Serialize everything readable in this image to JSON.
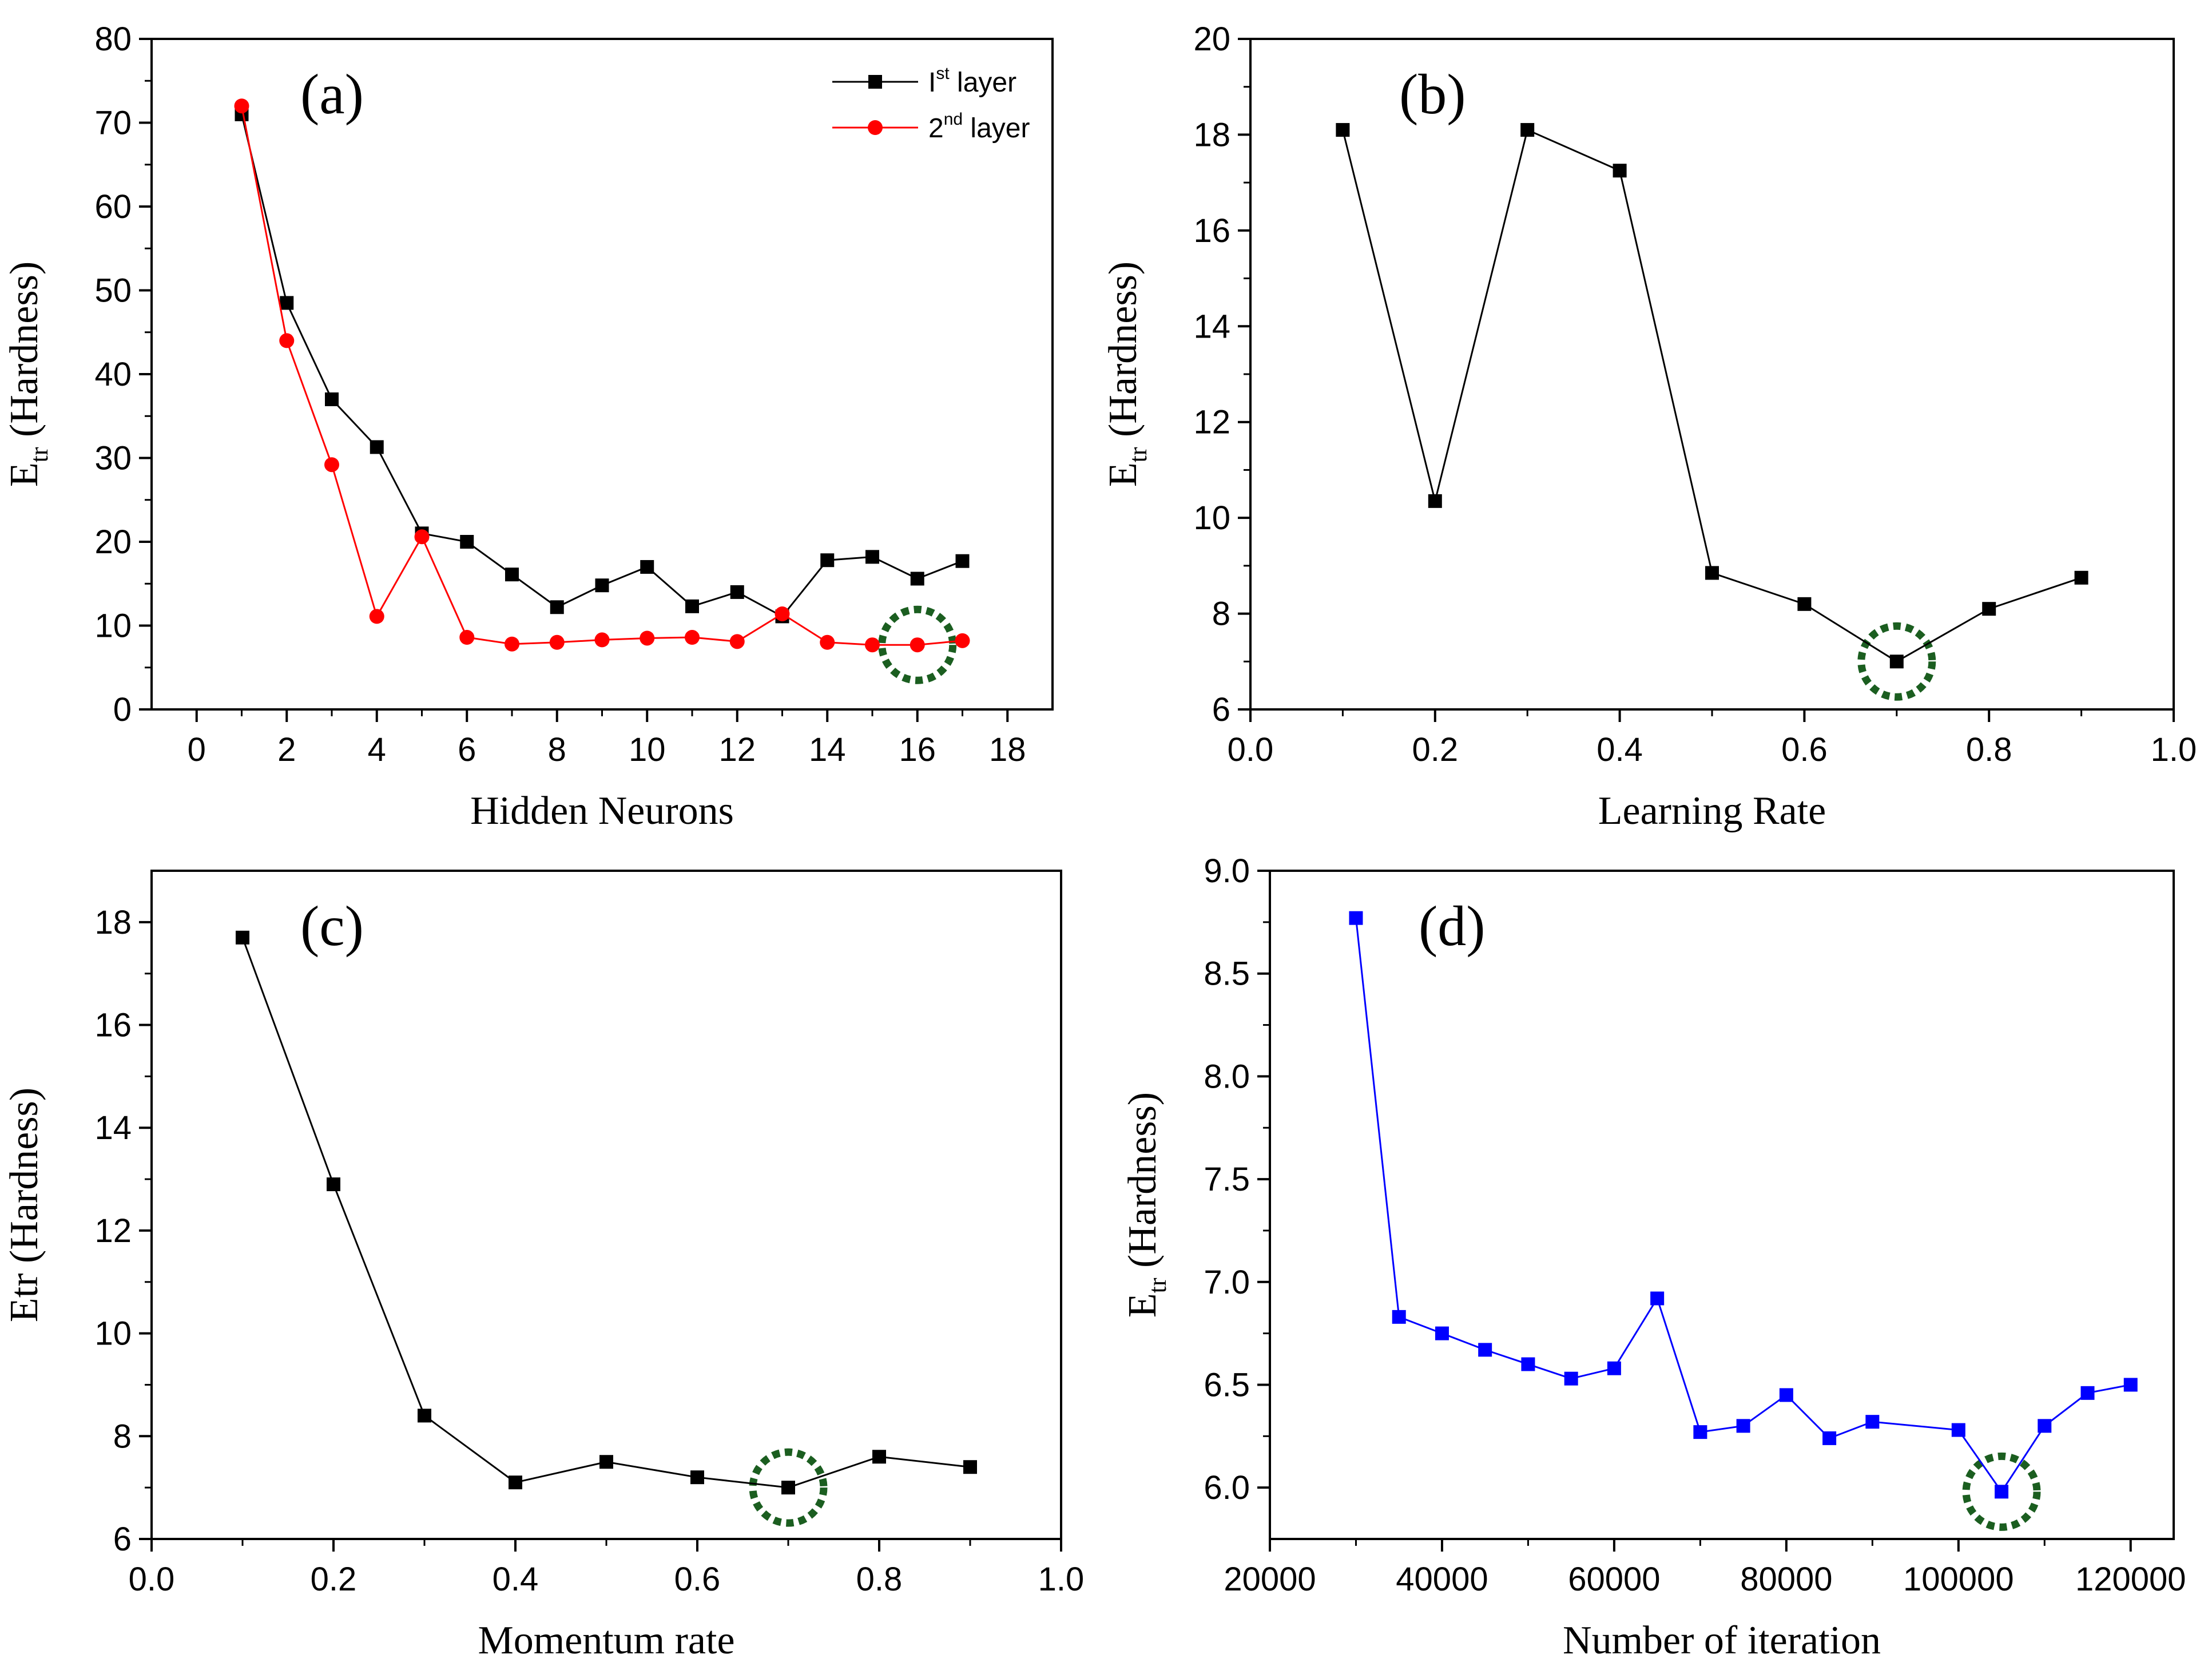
{
  "chart_data": [
    {
      "type": "line",
      "panel_label": "(a)",
      "xlabel": "Hidden Neurons",
      "ylabel": {
        "main": "E",
        "sub": "tr",
        "rest": " (Hardness)"
      },
      "xlim": [
        -1,
        19
      ],
      "ylim": [
        0,
        80
      ],
      "xticks": [
        0,
        2,
        4,
        6,
        8,
        10,
        12,
        14,
        16,
        18
      ],
      "yticks": [
        0,
        10,
        20,
        30,
        40,
        50,
        60,
        70,
        80
      ],
      "legend": "top-right",
      "series": [
        {
          "name": "Ist layer",
          "name_base": "I",
          "name_sup": "st",
          "name_rest": " layer",
          "color": "#000000",
          "marker": "square",
          "x": [
            1,
            2,
            3,
            4,
            5,
            6,
            7,
            8,
            9,
            10,
            11,
            12,
            13,
            14,
            15,
            16,
            17
          ],
          "y": [
            71,
            48.5,
            37,
            31.3,
            21,
            20,
            16.1,
            12.2,
            14.8,
            17,
            12.3,
            14,
            11.1,
            17.8,
            18.2,
            15.6,
            17.7
          ]
        },
        {
          "name": "2nd layer",
          "name_base": "2",
          "name_sup": "nd",
          "name_rest": " layer",
          "color": "#ff0000",
          "marker": "circle",
          "x": [
            1,
            2,
            3,
            4,
            5,
            6,
            7,
            8,
            9,
            10,
            11,
            12,
            13,
            14,
            15,
            16,
            17
          ],
          "y": [
            72,
            44,
            29.2,
            11.1,
            20.6,
            8.6,
            7.8,
            8,
            8.3,
            8.5,
            8.6,
            8.1,
            11.4,
            8,
            7.7,
            7.7,
            8.2
          ]
        }
      ],
      "highlight": {
        "x": 16,
        "y": 7.7
      }
    },
    {
      "type": "line",
      "panel_label": "(b)",
      "xlabel": "Learning Rate",
      "ylabel": {
        "main": "E",
        "sub": "tr",
        "rest": " (Hardness)"
      },
      "xlim": [
        0.0,
        1.0
      ],
      "ylim": [
        6,
        20
      ],
      "xticks": [
        "0.0",
        "0.2",
        "0.4",
        "0.6",
        "0.8",
        "1.0"
      ],
      "yticks": [
        6,
        8,
        10,
        12,
        14,
        16,
        18,
        20
      ],
      "series": [
        {
          "color": "#000000",
          "marker": "square",
          "x": [
            0.1,
            0.2,
            0.3,
            0.4,
            0.5,
            0.6,
            0.7,
            0.8,
            0.9
          ],
          "y": [
            18.1,
            10.35,
            18.1,
            17.25,
            8.85,
            8.2,
            7.0,
            8.1,
            8.75
          ]
        }
      ],
      "highlight": {
        "x": 0.7,
        "y": 7.0
      }
    },
    {
      "type": "line",
      "panel_label": "(c)",
      "xlabel": "Momentum rate",
      "ylabel": {
        "main": "Etr",
        "sub": "",
        "rest": " (Hardness)"
      },
      "xlim": [
        0.0,
        1.0
      ],
      "ylim": [
        6,
        19
      ],
      "xticks": [
        "0.0",
        "0.2",
        "0.4",
        "0.6",
        "0.8",
        "1.0"
      ],
      "yticks": [
        6,
        8,
        10,
        12,
        14,
        16,
        18
      ],
      "series": [
        {
          "color": "#000000",
          "marker": "square",
          "x": [
            0.1,
            0.2,
            0.3,
            0.4,
            0.5,
            0.6,
            0.7,
            0.8,
            0.9
          ],
          "y": [
            17.7,
            12.9,
            8.4,
            7.1,
            7.5,
            7.2,
            7.0,
            7.6,
            7.4
          ]
        }
      ],
      "highlight": {
        "x": 0.7,
        "y": 7.0
      }
    },
    {
      "type": "line",
      "panel_label": "(d)",
      "xlabel": "Number of iteration",
      "ylabel": {
        "main": "E",
        "sub": "tr",
        "rest": " (Hardness)"
      },
      "xlim": [
        20000,
        125000
      ],
      "ylim": [
        5.75,
        9.0
      ],
      "xticks": [
        20000,
        40000,
        60000,
        80000,
        100000,
        120000
      ],
      "yticks": [
        "6.0",
        "6.5",
        "7.0",
        "7.5",
        "8.0",
        "8.5",
        "9.0"
      ],
      "series": [
        {
          "color": "#0000ff",
          "marker": "square",
          "x": [
            30000,
            35000,
            40000,
            45000,
            50000,
            55000,
            60000,
            65000,
            70000,
            75000,
            80000,
            85000,
            90000,
            100000,
            105000,
            110000,
            115000,
            120000
          ],
          "y": [
            8.77,
            6.83,
            6.75,
            6.67,
            6.6,
            6.53,
            6.58,
            6.92,
            6.27,
            6.3,
            6.45,
            6.24,
            6.32,
            6.28,
            5.98,
            6.3,
            6.46,
            6.5
          ]
        }
      ],
      "highlight": {
        "x": 105000,
        "y": 5.98
      }
    }
  ]
}
